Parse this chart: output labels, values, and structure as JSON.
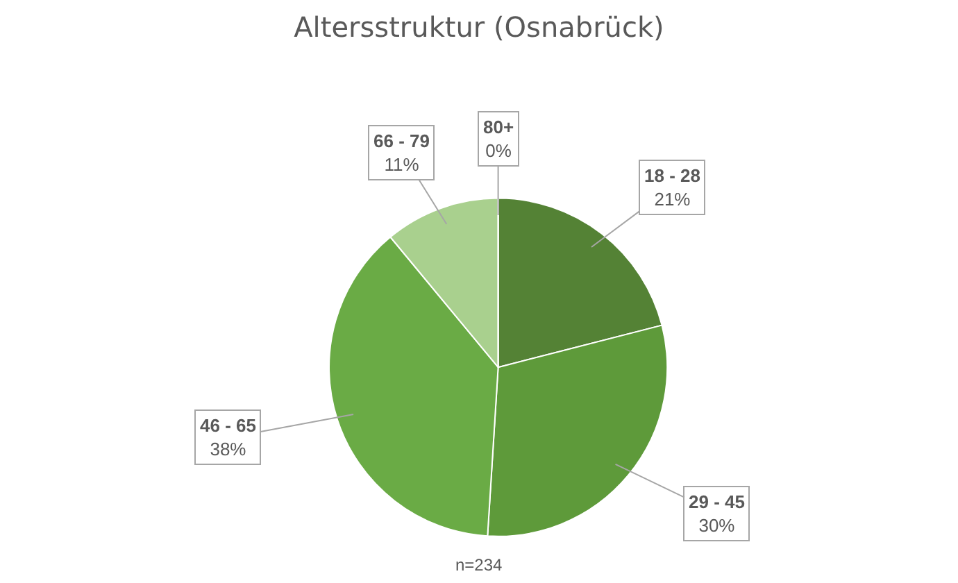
{
  "chart_data": {
    "type": "pie",
    "title": "Altersstruktur (Osnabrück)",
    "categories": [
      "18 - 28",
      "29 - 45",
      "46 - 65",
      "66 - 79",
      "80+"
    ],
    "values": [
      21,
      30,
      38,
      11,
      0
    ],
    "value_labels": [
      "21%",
      "30%",
      "38%",
      "11%",
      "0%"
    ],
    "colors": [
      "#548235",
      "#5e9a3a",
      "#6aab45",
      "#a9d08e",
      "#c5e0b4"
    ],
    "annotations": [
      "n=234"
    ]
  }
}
